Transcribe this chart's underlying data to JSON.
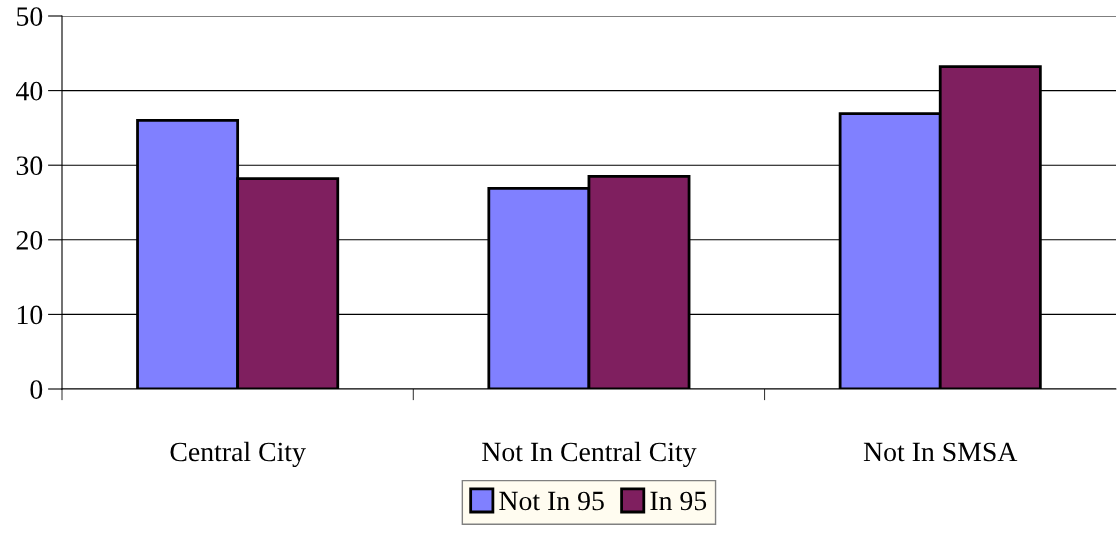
{
  "chart_data": {
    "type": "bar",
    "categories": [
      "Central City",
      "Not In Central City",
      "Not In SMSA"
    ],
    "series": [
      {
        "name": "Not In 95",
        "color": "#8080ff",
        "values": [
          36,
          26.9,
          36.9
        ]
      },
      {
        "name": "In 95",
        "color": "#7f1f5f",
        "values": [
          28.2,
          28.5,
          43.2
        ]
      }
    ],
    "ylim": [
      0,
      50
    ],
    "yticks": [
      0,
      10,
      20,
      30,
      40,
      50
    ],
    "grid": "y",
    "legend": "bottom"
  }
}
